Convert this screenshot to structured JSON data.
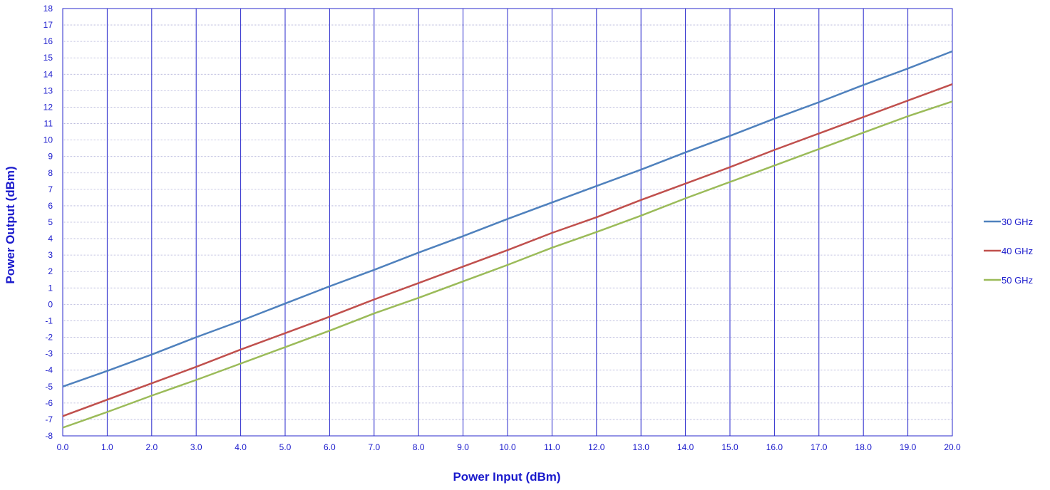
{
  "chart_data": {
    "type": "line",
    "title": "",
    "xlabel": "Power Input (dBm)",
    "ylabel": "Power Output (dBm)",
    "xlim": [
      0,
      20
    ],
    "ylim": [
      -8,
      18
    ],
    "x_ticks": [
      "0.0",
      "1.0",
      "2.0",
      "3.0",
      "4.0",
      "5.0",
      "6.0",
      "7.0",
      "8.0",
      "9.0",
      "10.0",
      "11.0",
      "12.0",
      "13.0",
      "14.0",
      "15.0",
      "16.0",
      "17.0",
      "18.0",
      "19.0",
      "20.0"
    ],
    "y_ticks": [
      "18",
      "17",
      "16",
      "15",
      "14",
      "13",
      "12",
      "11",
      "10",
      "9",
      "8",
      "7",
      "6",
      "5",
      "4",
      "3",
      "2",
      "1",
      "0",
      "-1",
      "-2",
      "-3",
      "-4",
      "-5",
      "-6",
      "-7",
      "-8"
    ],
    "grid": true,
    "legend": "right",
    "x": [
      0,
      1,
      2,
      3,
      4,
      5,
      6,
      7,
      8,
      9,
      10,
      11,
      12,
      13,
      14,
      15,
      16,
      17,
      18,
      19,
      20
    ],
    "series": [
      {
        "name": "30 GHz",
        "color": "#4f81bd",
        "values": [
          -5.0,
          -4.05,
          -3.05,
          -2.0,
          -1.0,
          0.05,
          1.1,
          2.1,
          3.15,
          4.15,
          5.2,
          6.2,
          7.2,
          8.2,
          9.25,
          10.25,
          11.3,
          12.3,
          13.35,
          14.35,
          15.4
        ]
      },
      {
        "name": "40 GHz",
        "color": "#c0504d",
        "values": [
          -6.8,
          -5.8,
          -4.8,
          -3.8,
          -2.75,
          -1.75,
          -0.75,
          0.3,
          1.3,
          2.3,
          3.3,
          4.35,
          5.3,
          6.35,
          7.35,
          8.35,
          9.4,
          10.4,
          11.4,
          12.4,
          13.4
        ]
      },
      {
        "name": "50 GHz",
        "color": "#9bbb59",
        "values": [
          -7.5,
          -6.55,
          -5.55,
          -4.6,
          -3.6,
          -2.6,
          -1.6,
          -0.55,
          0.4,
          1.4,
          2.4,
          3.45,
          4.4,
          5.4,
          6.45,
          7.45,
          8.45,
          9.45,
          10.45,
          11.45,
          12.35
        ]
      }
    ]
  }
}
